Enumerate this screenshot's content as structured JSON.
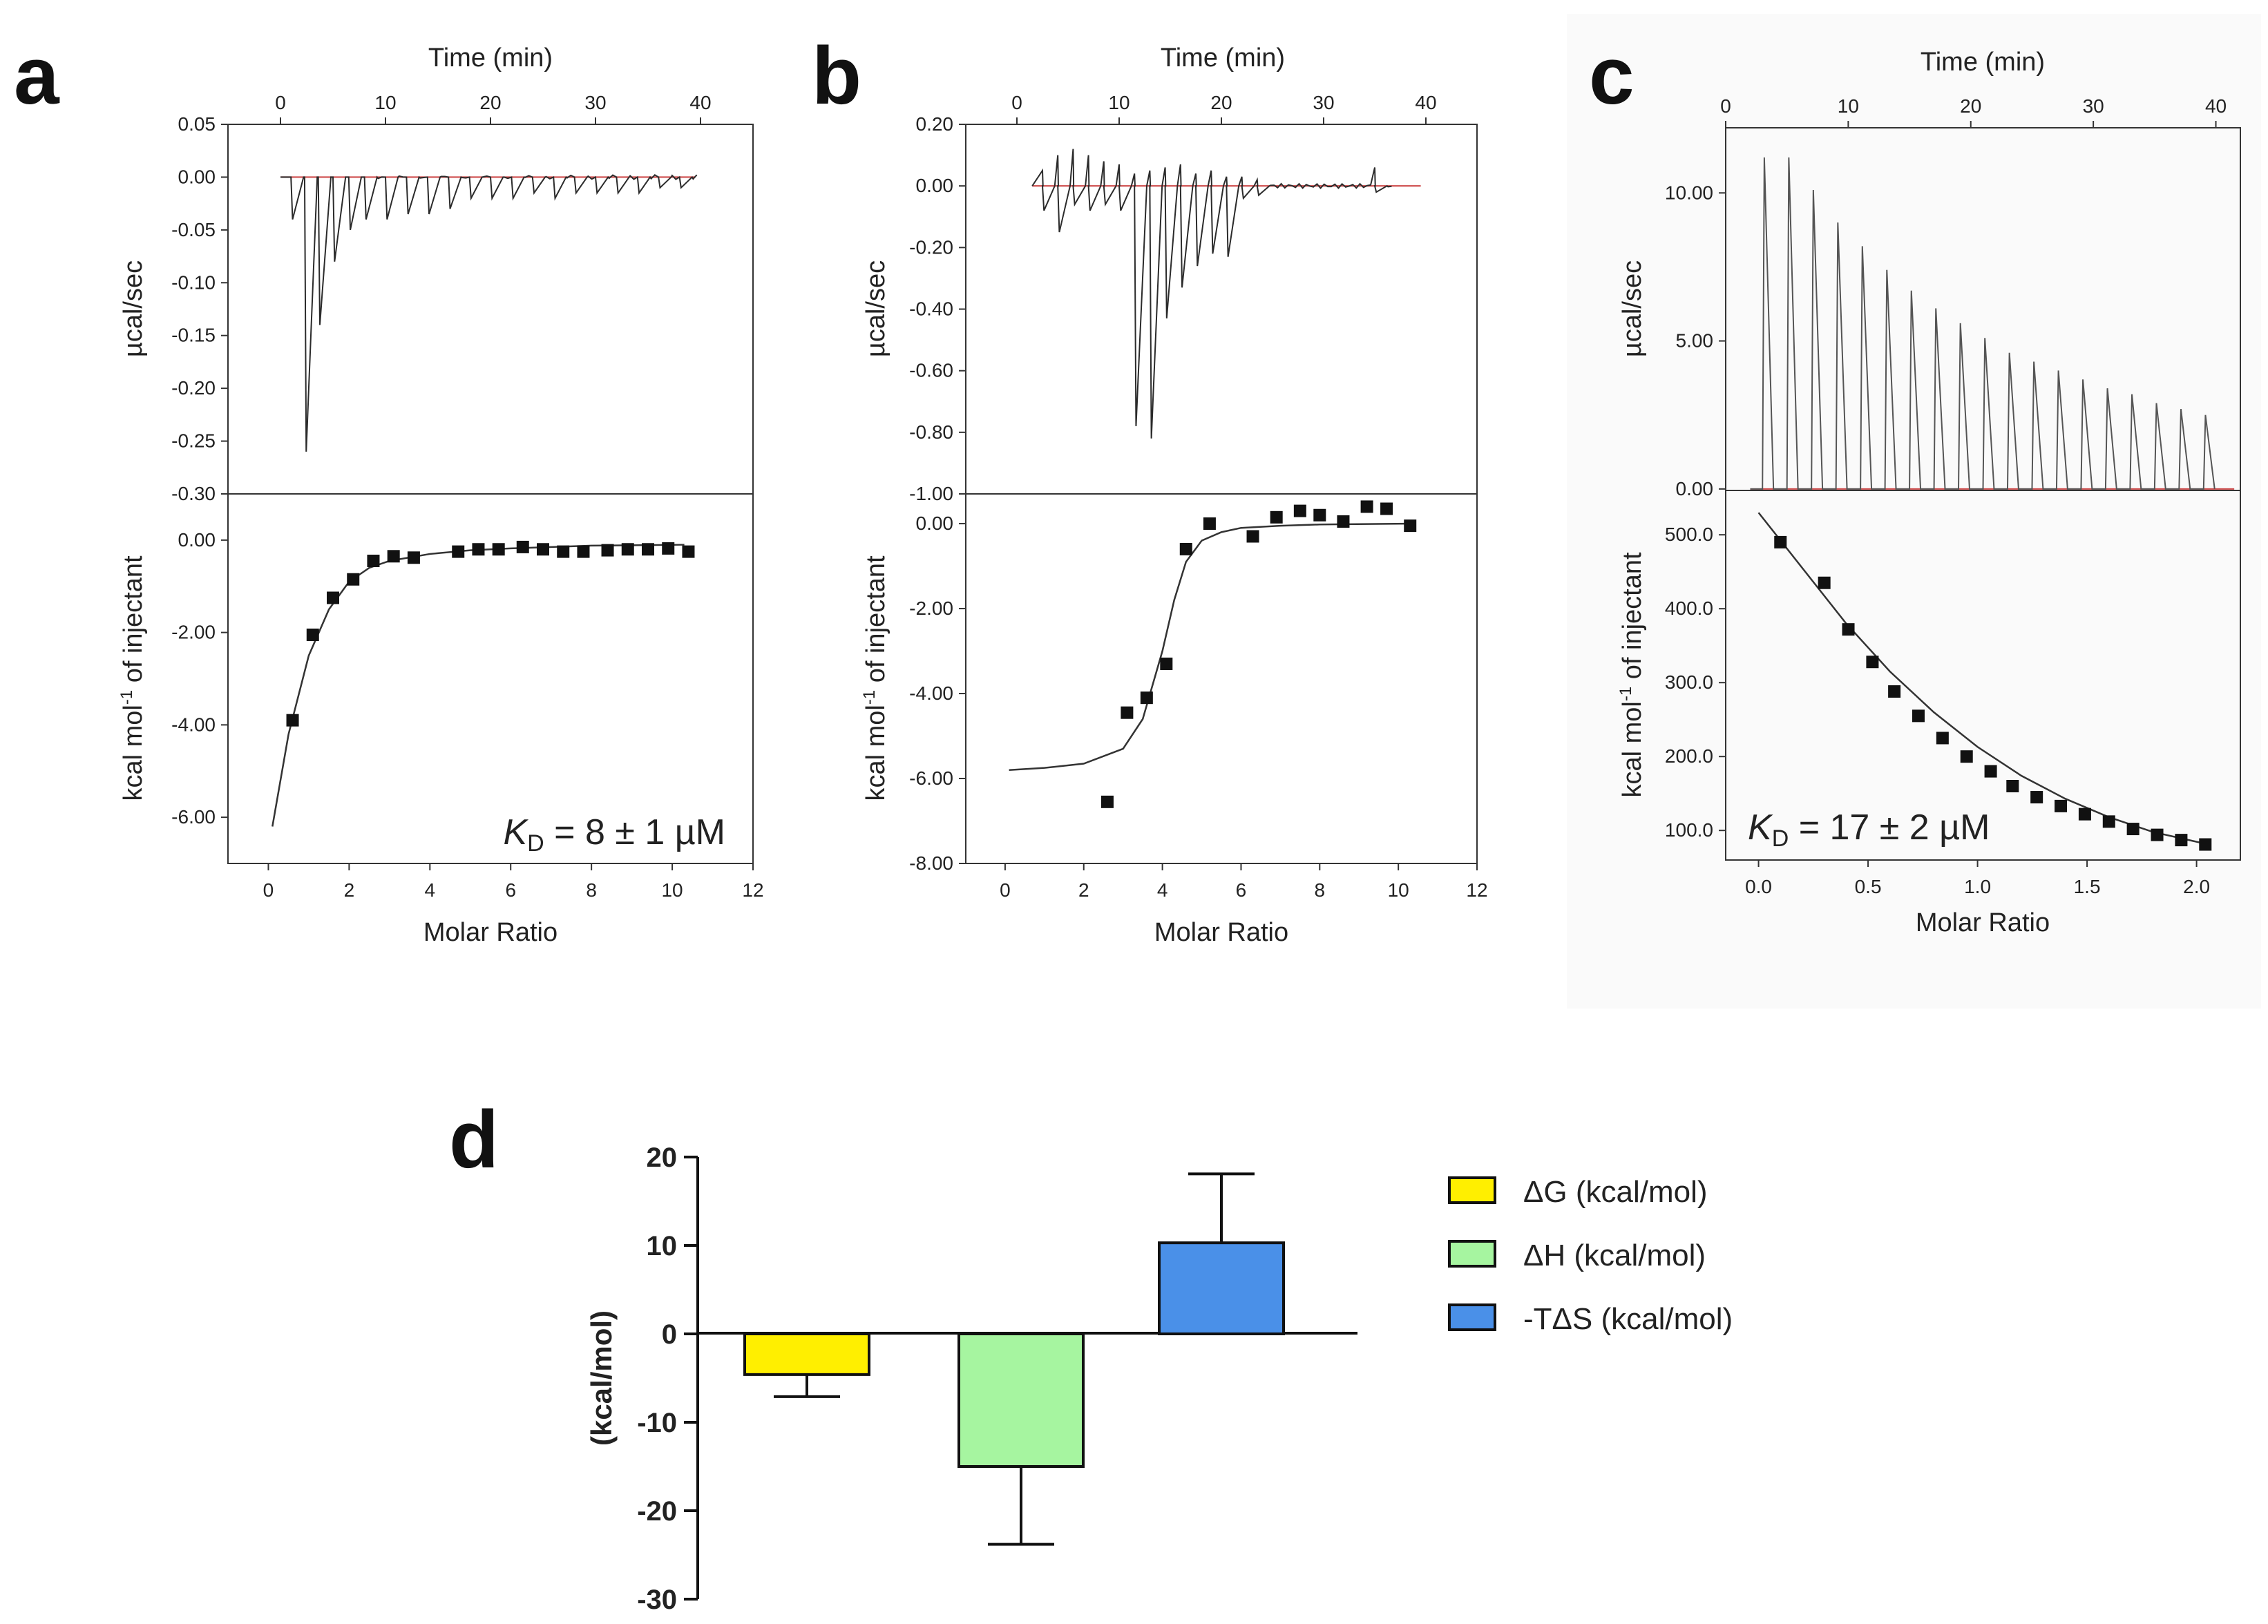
{
  "colors": {
    "raw_trace": "#2b2b2b",
    "baseline": "#cc4444",
    "marker": "#111111",
    "bar_dG": "#ffef00",
    "bar_dH": "#a6f5a0",
    "bar_TdS": "#4a90e8"
  },
  "chart_data": [
    {
      "panel": "a",
      "type": "scatter",
      "time_axis": {
        "label": "Time (min)",
        "range": [
          -5,
          45
        ],
        "ticks": [
          "0",
          "10",
          "20",
          "30",
          "40"
        ]
      },
      "top": {
        "ylabel": "µcal/sec",
        "ylim": [
          -0.3,
          0.05
        ],
        "ytick_labels": [
          "0.05",
          "0.00",
          "-0.05",
          "-0.10",
          "-0.15",
          "-0.20",
          "-0.25",
          "-0.30"
        ],
        "injection_times": [
          1,
          2.3,
          3.6,
          5,
          6.5,
          8,
          10,
          12,
          14,
          16,
          18,
          20,
          22,
          24,
          26,
          28,
          30,
          32,
          34,
          36,
          38
        ],
        "peak_heights": [
          -0.04,
          -0.26,
          -0.14,
          -0.08,
          -0.05,
          -0.04,
          -0.04,
          -0.035,
          -0.035,
          -0.03,
          -0.02,
          -0.02,
          -0.02,
          -0.015,
          -0.02,
          -0.015,
          -0.015,
          -0.015,
          -0.015,
          -0.01,
          -0.01
        ]
      },
      "bottom": {
        "xlabel": "Molar Ratio",
        "ylabel": "kcal mol-1 of injectant",
        "xlim": [
          -1,
          12
        ],
        "ylim": [
          -7,
          1
        ],
        "xtick_labels": [
          "0",
          "2",
          "4",
          "6",
          "8",
          "10",
          "12"
        ],
        "ytick_labels": [
          "0.00",
          "-2.00",
          "-4.00",
          "-6.00"
        ],
        "points_x": [
          0.6,
          1.1,
          1.6,
          2.1,
          2.6,
          3.1,
          3.6,
          4.7,
          5.2,
          5.7,
          6.3,
          6.8,
          7.3,
          7.8,
          8.4,
          8.9,
          9.4,
          9.9,
          10.4
        ],
        "points_y": [
          -3.9,
          -2.05,
          -1.25,
          -0.85,
          -0.45,
          -0.35,
          -0.38,
          -0.25,
          -0.2,
          -0.2,
          -0.15,
          -0.2,
          -0.25,
          -0.25,
          -0.22,
          -0.2,
          -0.2,
          -0.18,
          -0.25
        ],
        "fit_x": [
          0.1,
          0.5,
          1.0,
          1.5,
          2.0,
          2.5,
          3.0,
          4.0,
          5.0,
          6.0,
          8.0,
          10.3
        ],
        "fit_y": [
          -6.2,
          -4.2,
          -2.5,
          -1.5,
          -0.9,
          -0.6,
          -0.45,
          -0.3,
          -0.22,
          -0.18,
          -0.12,
          -0.1
        ],
        "annotation_k": "K",
        "annotation_sub": "D",
        "annotation_rest": " = 8 ± 1 µM"
      }
    },
    {
      "panel": "b",
      "type": "scatter",
      "time_axis": {
        "label": "Time (min)",
        "range": [
          -5,
          45
        ],
        "ticks": [
          "0",
          "10",
          "20",
          "30",
          "40"
        ]
      },
      "top": {
        "ylabel": "µcal/sec",
        "ylim": [
          -1.0,
          0.2
        ],
        "ytick_labels": [
          "0.20",
          "0.00",
          "-0.20",
          "-0.40",
          "-0.60",
          "-0.80",
          "-1.00"
        ],
        "injection_times": [
          2.5,
          4,
          5.5,
          7,
          8.5,
          10,
          11.5,
          13,
          14.5,
          16,
          17.5,
          19,
          20.5,
          22,
          23.5,
          35
        ],
        "peak_heights": [
          -0.08,
          -0.15,
          -0.06,
          -0.08,
          -0.06,
          -0.08,
          -0.78,
          -0.82,
          -0.43,
          -0.33,
          -0.26,
          -0.22,
          -0.23,
          -0.04,
          -0.03,
          -0.02
        ],
        "upward_spikes": [
          0.05,
          0.1,
          0.12,
          0.1,
          0.08,
          0.07,
          0.04,
          0.05,
          0.06,
          0.07,
          0.04,
          0.05,
          0.03,
          0.03,
          0.02,
          0.06
        ]
      },
      "bottom": {
        "xlabel": "Molar Ratio",
        "ylabel": "kcal mol-1 of injectant",
        "xlim": [
          -1,
          12
        ],
        "ylim": [
          -8,
          0.7
        ],
        "xtick_labels": [
          "0",
          "2",
          "4",
          "6",
          "8",
          "10",
          "12"
        ],
        "ytick_labels": [
          "0.00",
          "-2.00",
          "-4.00",
          "-6.00",
          "-8.00"
        ],
        "points_x": [
          2.6,
          3.1,
          3.6,
          4.1,
          4.6,
          5.2,
          6.3,
          6.9,
          7.5,
          8.0,
          8.6,
          9.2,
          9.7,
          10.3
        ],
        "points_y": [
          -6.55,
          -4.45,
          -4.1,
          -3.3,
          -0.6,
          0.0,
          -0.3,
          0.15,
          0.3,
          0.2,
          0.05,
          0.4,
          0.35,
          -0.05
        ],
        "fit_x": [
          0.1,
          1.0,
          2.0,
          3.0,
          3.5,
          4.0,
          4.3,
          4.6,
          5.0,
          5.5,
          6.0,
          7.0,
          8.0,
          10.3
        ],
        "fit_y": [
          -5.8,
          -5.75,
          -5.65,
          -5.3,
          -4.6,
          -3.0,
          -1.8,
          -0.9,
          -0.4,
          -0.2,
          -0.1,
          -0.05,
          -0.02,
          0.0
        ]
      }
    },
    {
      "panel": "c",
      "type": "scatter",
      "time_axis": {
        "label": "Time (min)",
        "range": [
          0,
          42
        ],
        "ticks": [
          "0",
          "10",
          "20",
          "30",
          "40"
        ]
      },
      "top": {
        "ylabel": "µcal/sec",
        "ylim": [
          -0.05,
          12.2
        ],
        "ytick_labels": [
          "10.00",
          "5.00",
          "0.00"
        ],
        "injection_times": [
          3,
          5,
          7,
          9,
          11,
          13,
          15,
          17,
          19,
          21,
          23,
          25,
          27,
          29,
          31,
          33,
          35,
          37,
          39
        ],
        "peak_heights": [
          11.2,
          11.2,
          10.1,
          9.0,
          8.2,
          7.4,
          6.7,
          6.1,
          5.6,
          5.1,
          4.6,
          4.3,
          4.0,
          3.7,
          3.4,
          3.2,
          2.9,
          2.7,
          2.5
        ]
      },
      "bottom": {
        "xlabel": "Molar Ratio",
        "ylabel": "kcal mol-1 of injectant",
        "xlim": [
          -0.15,
          2.2
        ],
        "ylim": [
          60,
          560
        ],
        "xtick_labels": [
          "0.0",
          "0.5",
          "1.0",
          "1.5",
          "2.0"
        ],
        "ytick_labels": [
          "500.0",
          "400.0",
          "300.0",
          "200.0",
          "100.0"
        ],
        "points_x": [
          0.1,
          0.3,
          0.41,
          0.52,
          0.62,
          0.73,
          0.84,
          0.95,
          1.06,
          1.16,
          1.27,
          1.38,
          1.49,
          1.6,
          1.71,
          1.82,
          1.93,
          2.04
        ],
        "points_y": [
          490,
          435,
          372,
          328,
          288,
          255,
          225,
          200,
          180,
          160,
          145,
          133,
          122,
          112,
          102,
          94,
          87,
          81
        ],
        "fit_x": [
          0.0,
          0.2,
          0.4,
          0.6,
          0.8,
          1.0,
          1.2,
          1.4,
          1.6,
          1.8,
          2.04
        ],
        "fit_y": [
          530,
          455,
          380,
          315,
          260,
          213,
          174,
          143,
          118,
          98,
          82
        ],
        "annotation_k": "K",
        "annotation_sub": "D",
        "annotation_rest": " = 17 ± 2 µM"
      }
    },
    {
      "panel": "d",
      "type": "bar",
      "ylabel": "(kcal/mol)",
      "ylim": [
        -30,
        20
      ],
      "ytick_labels": [
        "20",
        "10",
        "0",
        "-10",
        "-20",
        "-30"
      ],
      "categories": [
        "ΔG (kcal/mol)",
        "ΔH (kcal/mol)",
        "-TΔS (kcal/mol)"
      ],
      "values": [
        -4.6,
        -15.0,
        10.3
      ],
      "errors": [
        2.5,
        8.8,
        7.8
      ],
      "legend_position": "right"
    }
  ],
  "labels": {
    "panel_a": "a",
    "panel_b": "b",
    "panel_c": "c",
    "panel_d": "d",
    "time_title": "Time (min)",
    "ucal_label": "µcal/sec",
    "molar_ratio": "Molar Ratio",
    "kcal_label_main": "kcal mol",
    "kcal_label_sup": "-1",
    "kcal_label_end": " of injectant",
    "d_ylabel": "(kcal/mol)",
    "legend_dG": "ΔG (kcal/mol)",
    "legend_dH": "ΔH (kcal/mol)",
    "legend_TdS": "-TΔS (kcal/mol)"
  }
}
